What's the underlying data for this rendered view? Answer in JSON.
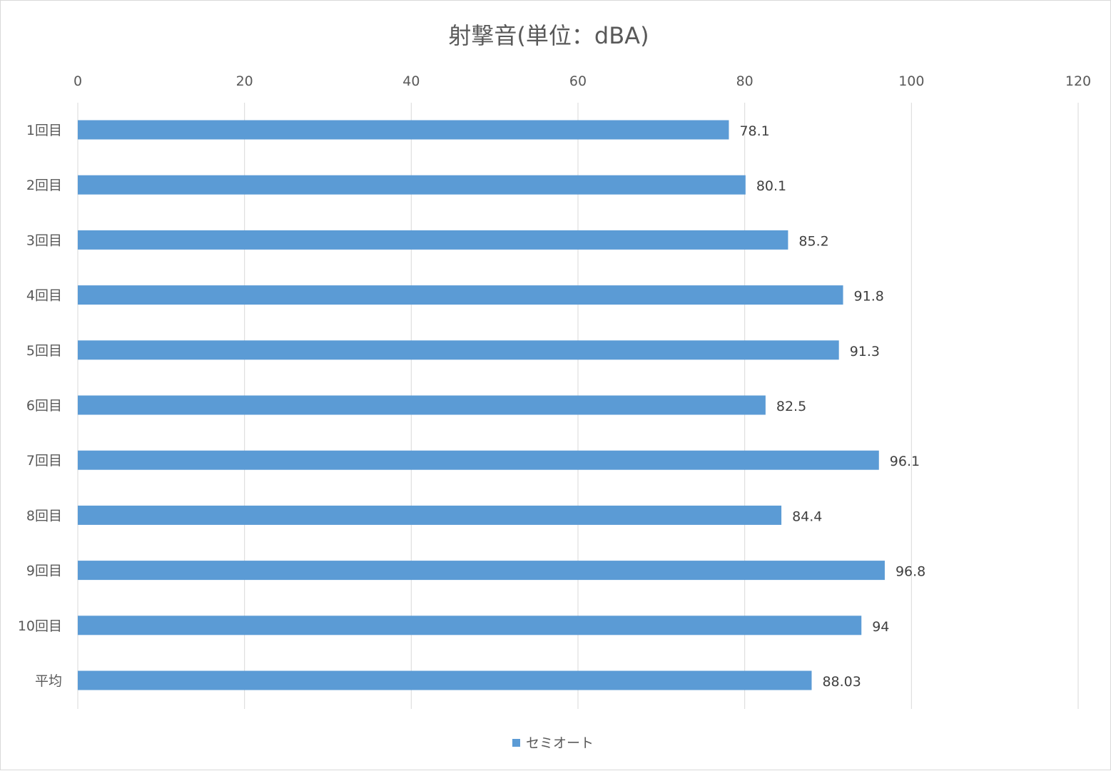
{
  "chart_data": {
    "type": "bar",
    "orientation": "horizontal",
    "title": "射撃音(単位：dBA)",
    "categories": [
      "1回目",
      "2回目",
      "3回目",
      "4回目",
      "5回目",
      "6回目",
      "7回目",
      "8回目",
      "9回目",
      "10回目",
      "平均"
    ],
    "series": [
      {
        "name": "セミオート",
        "color": "#5b9bd5",
        "values": [
          78.1,
          80.1,
          85.2,
          91.8,
          91.3,
          82.5,
          96.1,
          84.4,
          96.8,
          94,
          88.03
        ],
        "labels": [
          "78.1",
          "80.1",
          "85.2",
          "91.8",
          "91.3",
          "82.5",
          "96.1",
          "84.4",
          "96.8",
          "94",
          "88.03"
        ]
      }
    ],
    "xlim": [
      0,
      120
    ],
    "xticks": [
      0,
      20,
      40,
      60,
      80,
      100,
      120
    ],
    "x_axis_position": "top",
    "grid": true,
    "legend_position": "bottom"
  }
}
